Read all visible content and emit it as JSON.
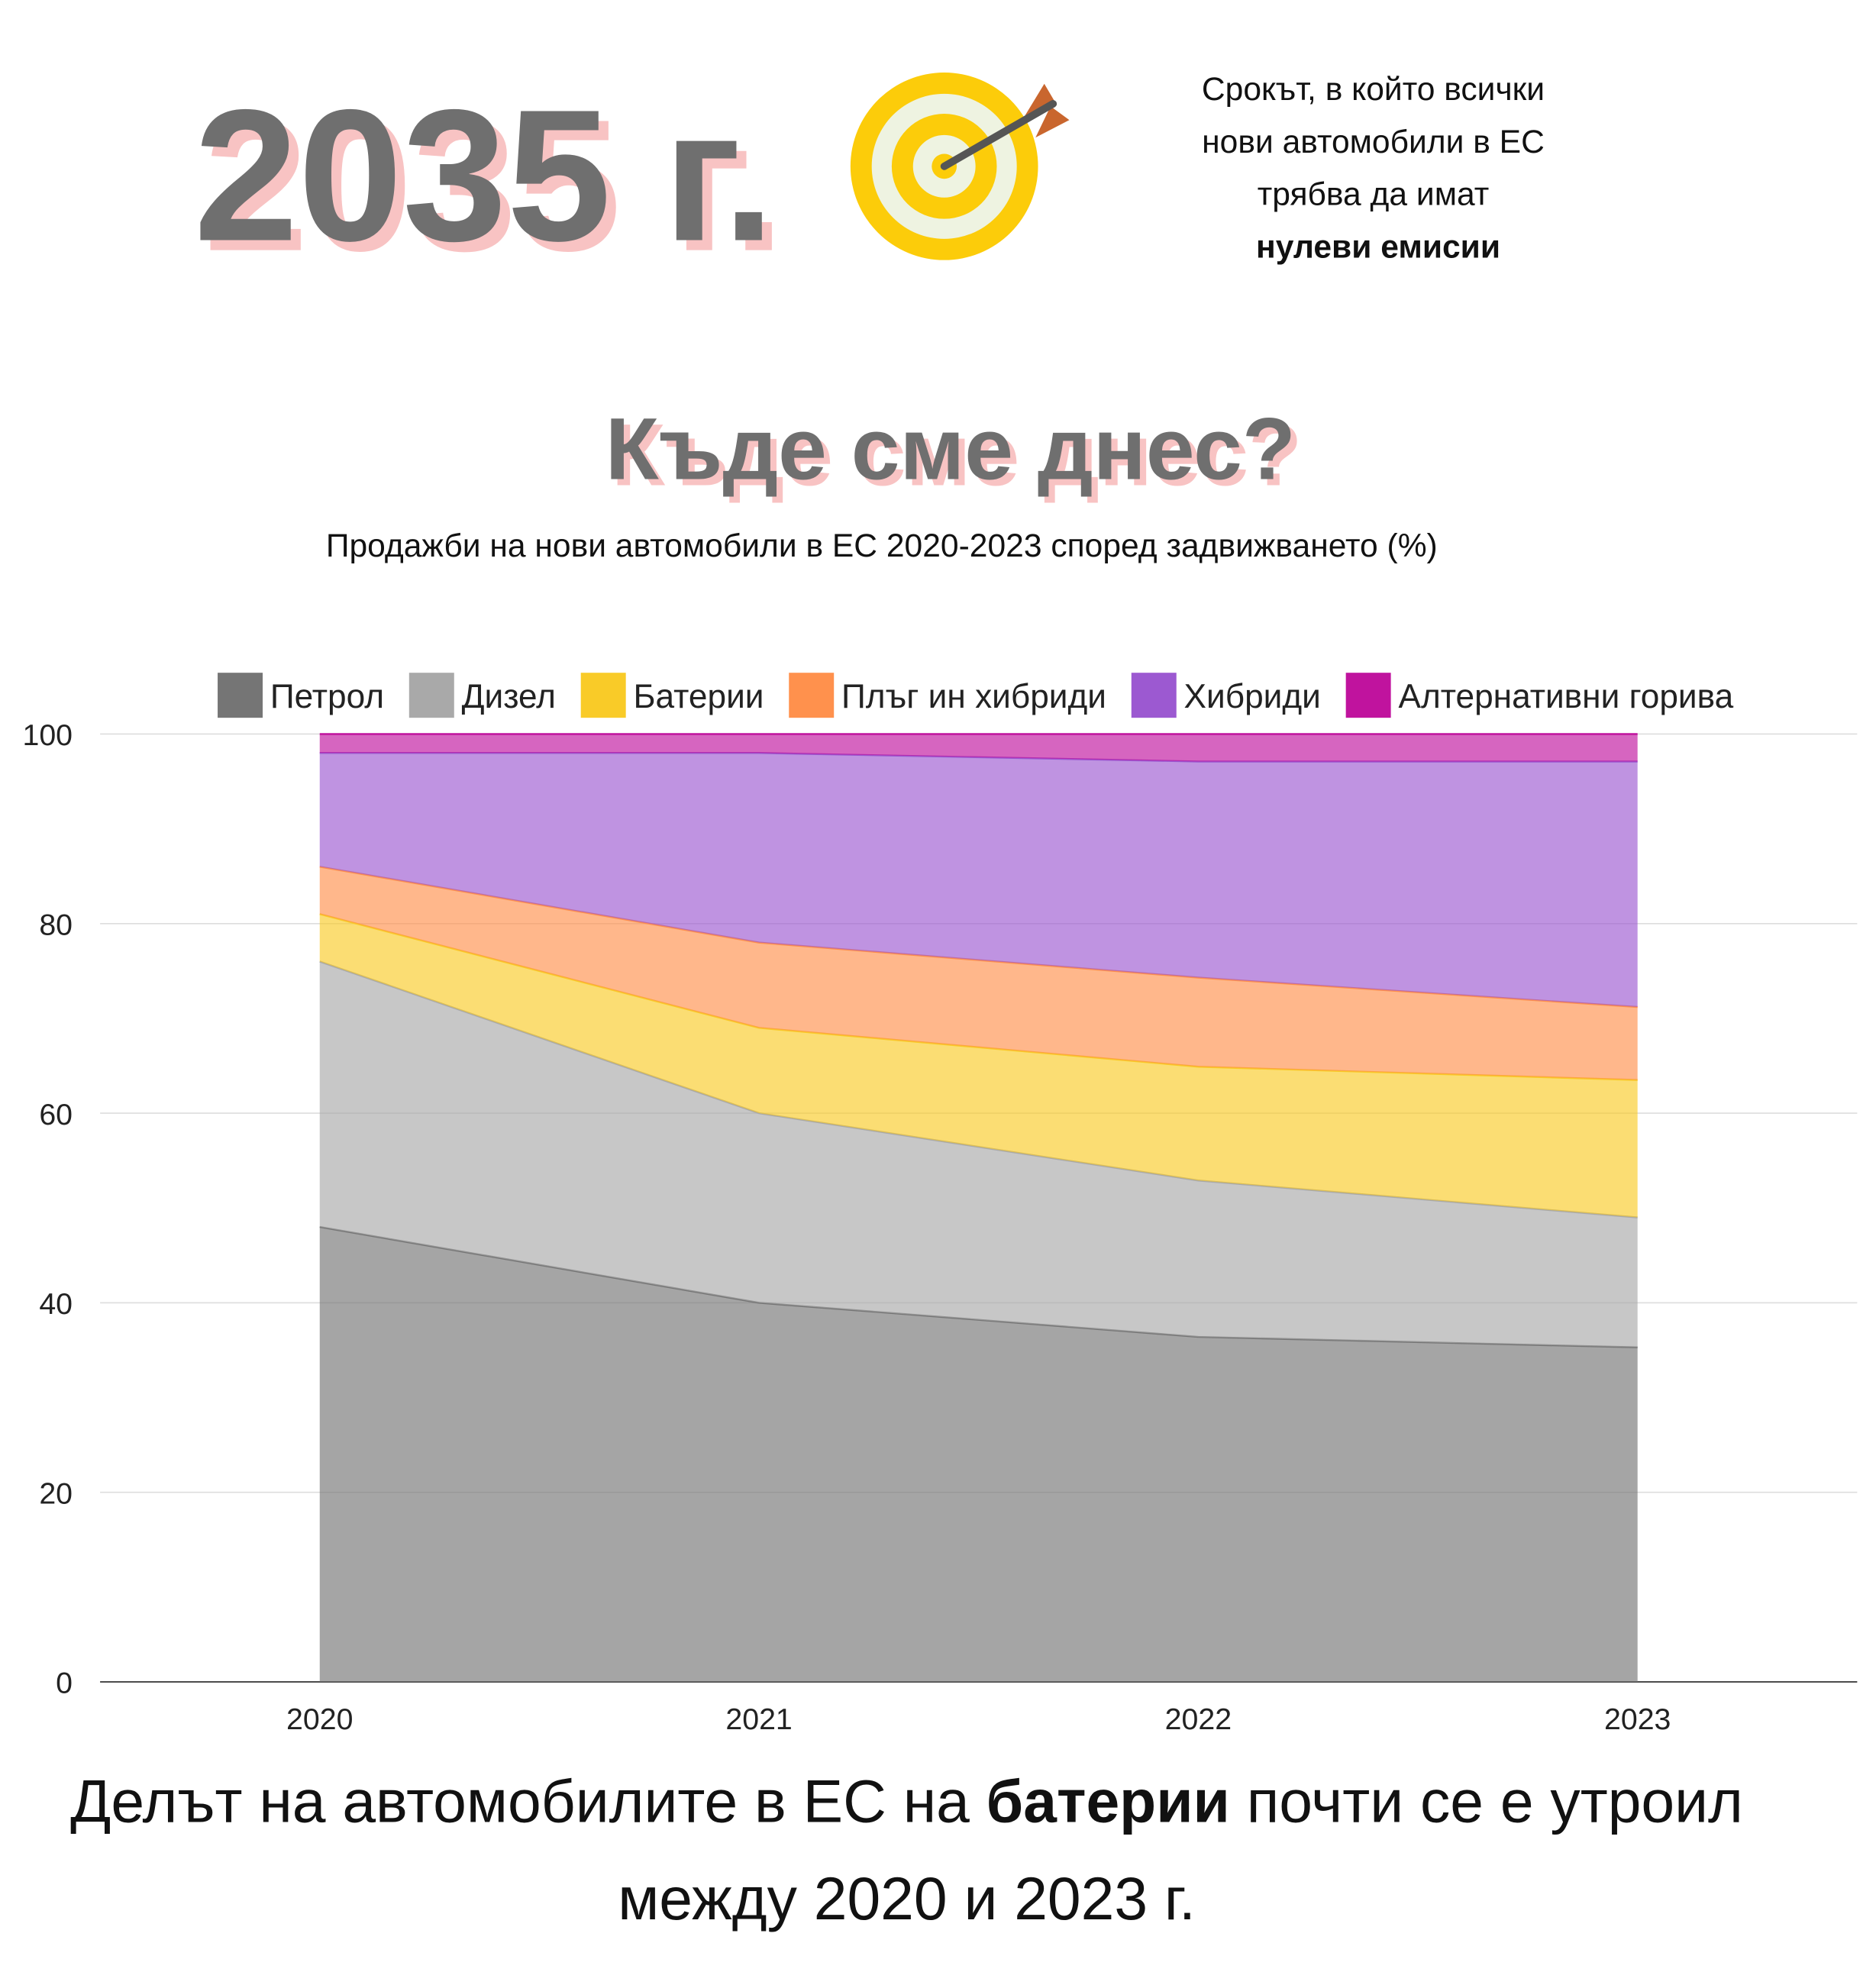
{
  "header": {
    "year": "2035 г.",
    "note_lines": [
      "Срокът, в който всички",
      "нови автомобили в ЕС",
      "трябва да имат"
    ],
    "note_bold": "нулеви емисии"
  },
  "chart_data": {
    "type": "stacked-area",
    "title": "Къде сме днес?",
    "subtitle": "Продажби на нови автомобили в ЕС 2020-2023 според задвижването (%)",
    "categories": [
      "2020",
      "2021",
      "2022",
      "2023"
    ],
    "series": [
      {
        "name": "Петрол",
        "color": "#757575",
        "values": [
          48,
          40,
          36.4,
          35.3
        ]
      },
      {
        "name": "Дизел",
        "color": "#a9a9a9",
        "values": [
          28,
          20,
          16.5,
          13.7
        ]
      },
      {
        "name": "Батерии",
        "color": "#f9cb28",
        "values": [
          5,
          9,
          12,
          14.5
        ]
      },
      {
        "name": "Плъг ин хибриди",
        "color": "#ff914d",
        "values": [
          5,
          9,
          9.4,
          7.7
        ]
      },
      {
        "name": "Хибриди",
        "color": "#9c59d1",
        "values": [
          12,
          20,
          22.8,
          25.9
        ]
      },
      {
        "name": "Алтернативни горива",
        "color": "#c0139e",
        "values": [
          2,
          2,
          2.9,
          2.9
        ]
      }
    ],
    "ylim": [
      0,
      100
    ],
    "yticks": [
      0,
      20,
      40,
      60,
      80,
      100
    ],
    "grid": true,
    "legend": "top"
  },
  "footer": {
    "line1_start": "Делът на автомобилите в ЕС на ",
    "line1_bold": "батерии",
    "line1_end": " почти се е утроил",
    "line2": "между 2020 и 2023 г."
  }
}
